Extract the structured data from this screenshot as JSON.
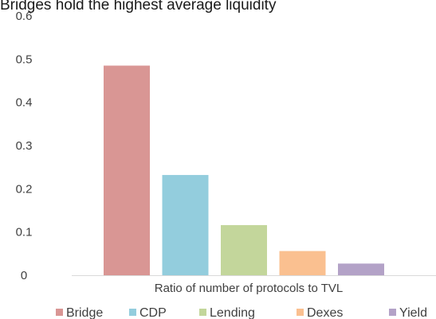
{
  "chart_data": {
    "type": "bar",
    "title": "Bridges hold the highest average liquidity",
    "xlabel": "Ratio of number of protocols to TVL",
    "ylabel": "",
    "ylim": [
      0,
      0.6
    ],
    "yticks": [
      0,
      0.1,
      0.2,
      0.3,
      0.4,
      0.5,
      0.6
    ],
    "grid": false,
    "legend": "bottom",
    "categories": [
      "Bridge",
      "CDP",
      "Lending",
      "Dexes",
      "Yield"
    ],
    "series": [
      {
        "values": [
          0.485,
          0.232,
          0.116,
          0.056,
          0.027
        ]
      }
    ],
    "colors": [
      "#d99694",
      "#93cddd",
      "#c3d69b",
      "#fac090",
      "#b3a2c7"
    ]
  }
}
